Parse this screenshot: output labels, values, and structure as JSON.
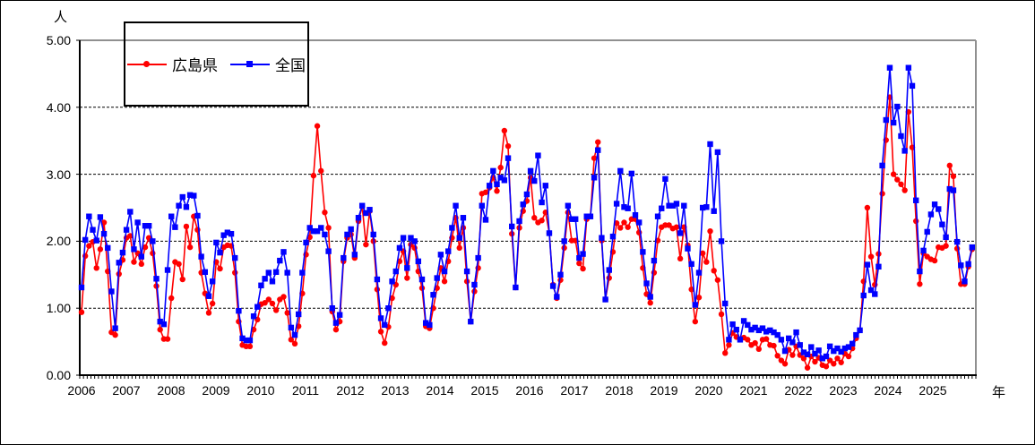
{
  "chart": {
    "y_unit_label": "人",
    "x_unit_label": "年",
    "y_tick_labels": [
      "0.00",
      "1.00",
      "2.00",
      "3.00",
      "4.00",
      "5.00"
    ],
    "x_tick_labels": [
      "2006",
      "2007",
      "2008",
      "2009",
      "2010",
      "2011",
      "2012",
      "2013",
      "2014",
      "2015",
      "2016",
      "2017",
      "2018",
      "2019",
      "2020",
      "2021",
      "2022",
      "2023",
      "2024",
      "2025"
    ]
  },
  "legend": {
    "items": [
      {
        "label": "広島県",
        "color": "#FF0000",
        "marker": "circle"
      },
      {
        "label": "全国",
        "color": "#0000FF",
        "marker": "square"
      }
    ]
  },
  "chart_data": {
    "type": "line",
    "title": "",
    "x_start": "2006-01",
    "x_frequency": "monthly",
    "x_years": [
      2006,
      2007,
      2008,
      2009,
      2010,
      2011,
      2012,
      2013,
      2014,
      2015,
      2016,
      2017,
      2018,
      2019,
      2020,
      2021,
      2022,
      2023,
      2024,
      2025
    ],
    "ylim": [
      0,
      5
    ],
    "y_tick_interval": 1,
    "ylabel": "人",
    "xlabel": "年",
    "grid": "horizontal-dashed",
    "legend_position": "top-left-inside",
    "series": [
      {
        "name": "広島県",
        "color": "#FF0000",
        "marker": "circle",
        "values": [
          0.94,
          1.78,
          1.93,
          1.99,
          1.6,
          1.88,
          2.28,
          1.55,
          0.64,
          0.6,
          1.51,
          1.72,
          2.05,
          2.08,
          1.69,
          1.82,
          1.66,
          1.91,
          2.05,
          1.82,
          1.33,
          0.68,
          0.54,
          0.54,
          1.15,
          1.69,
          1.66,
          1.43,
          2.22,
          1.91,
          2.37,
          2.17,
          1.53,
          1.22,
          0.93,
          1.07,
          1.69,
          1.59,
          1.91,
          1.94,
          1.93,
          1.53,
          0.8,
          0.45,
          0.43,
          0.43,
          0.68,
          0.83,
          1.06,
          1.08,
          1.13,
          1.07,
          0.97,
          1.13,
          1.17,
          0.93,
          0.53,
          0.47,
          0.73,
          1.22,
          1.8,
          2.06,
          2.98,
          3.72,
          3.05,
          2.43,
          2.2,
          0.95,
          0.68,
          0.8,
          1.7,
          2.05,
          2.1,
          1.75,
          2.3,
          2.52,
          1.95,
          2.45,
          2.0,
          1.28,
          0.65,
          0.48,
          0.72,
          1.15,
          1.35,
          1.7,
          1.85,
          1.45,
          1.95,
          1.9,
          1.55,
          1.3,
          0.73,
          0.7,
          1.0,
          1.3,
          1.6,
          1.4,
          1.7,
          2.05,
          2.35,
          1.9,
          2.2,
          1.4,
          0.8,
          1.25,
          1.6,
          2.71,
          2.73,
          2.8,
          2.95,
          2.75,
          3.1,
          3.65,
          3.42,
          2.11,
          1.31,
          2.2,
          2.45,
          2.6,
          2.95,
          2.35,
          2.28,
          2.31,
          2.43,
          2.12,
          1.35,
          1.15,
          1.42,
          1.9,
          2.43,
          2.01,
          2.01,
          1.67,
          1.59,
          2.33,
          2.37,
          3.24,
          3.48,
          2.01,
          1.13,
          1.45,
          1.84,
          2.27,
          2.2,
          2.28,
          2.21,
          2.33,
          2.33,
          2.13,
          1.6,
          1.21,
          1.08,
          1.53,
          2.01,
          2.21,
          2.24,
          2.24,
          2.19,
          2.21,
          1.74,
          2.21,
          1.94,
          1.28,
          0.8,
          1.16,
          1.82,
          1.69,
          2.15,
          1.56,
          1.42,
          0.91,
          0.33,
          0.45,
          0.63,
          0.57,
          0.53,
          0.56,
          0.53,
          0.45,
          0.48,
          0.39,
          0.53,
          0.54,
          0.45,
          0.44,
          0.29,
          0.22,
          0.17,
          0.38,
          0.3,
          0.43,
          0.3,
          0.25,
          0.11,
          0.28,
          0.2,
          0.26,
          0.15,
          0.13,
          0.22,
          0.17,
          0.25,
          0.19,
          0.32,
          0.28,
          0.4,
          0.55,
          0.67,
          1.4,
          2.5,
          1.77,
          1.35,
          1.81,
          2.71,
          3.51,
          4.15,
          3.0,
          2.92,
          2.85,
          2.76,
          3.93,
          3.4,
          2.3,
          1.36,
          1.82,
          1.77,
          1.73,
          1.71,
          1.91,
          1.9,
          1.93,
          3.13,
          2.97,
          1.89,
          1.36,
          1.36,
          1.62,
          1.88
        ]
      },
      {
        "name": "全国",
        "color": "#0000FF",
        "marker": "square",
        "values": [
          1.31,
          2.02,
          2.37,
          2.17,
          2.01,
          2.36,
          2.11,
          1.9,
          1.25,
          0.7,
          1.68,
          1.83,
          2.17,
          2.44,
          1.88,
          2.28,
          1.77,
          2.23,
          2.23,
          2.0,
          1.44,
          0.8,
          0.76,
          1.57,
          2.37,
          2.21,
          2.53,
          2.66,
          2.51,
          2.69,
          2.68,
          2.38,
          1.77,
          1.54,
          1.18,
          1.4,
          1.98,
          1.83,
          2.09,
          2.13,
          2.11,
          1.75,
          0.96,
          0.55,
          0.52,
          0.52,
          0.88,
          1.02,
          1.34,
          1.44,
          1.53,
          1.4,
          1.54,
          1.71,
          1.84,
          1.53,
          0.71,
          0.6,
          0.91,
          1.53,
          1.98,
          2.2,
          2.15,
          2.15,
          2.2,
          2.1,
          1.85,
          1.0,
          0.78,
          0.9,
          1.75,
          2.1,
          2.18,
          1.8,
          2.35,
          2.53,
          2.42,
          2.47,
          2.1,
          1.43,
          0.85,
          0.75,
          1.0,
          1.4,
          1.55,
          1.9,
          2.05,
          1.6,
          2.05,
          2.0,
          1.7,
          1.43,
          0.78,
          0.75,
          1.2,
          1.45,
          1.8,
          1.55,
          1.85,
          2.2,
          2.53,
          2.05,
          2.35,
          1.55,
          0.8,
          1.35,
          1.75,
          2.53,
          2.32,
          2.83,
          3.05,
          2.85,
          2.95,
          2.91,
          3.24,
          2.22,
          1.31,
          2.3,
          2.55,
          2.7,
          3.05,
          2.9,
          3.28,
          2.58,
          2.83,
          2.12,
          1.33,
          1.17,
          1.5,
          2.0,
          2.53,
          2.33,
          2.33,
          1.75,
          1.81,
          2.37,
          2.37,
          2.95,
          3.36,
          2.05,
          1.13,
          1.57,
          2.07,
          2.56,
          3.05,
          2.51,
          2.49,
          3.01,
          2.39,
          2.28,
          1.84,
          1.37,
          1.17,
          1.71,
          2.37,
          2.49,
          2.93,
          2.53,
          2.53,
          2.56,
          2.12,
          2.53,
          1.89,
          1.66,
          1.05,
          1.53,
          2.5,
          2.51,
          3.45,
          2.45,
          3.33,
          2.0,
          1.07,
          0.53,
          0.76,
          0.68,
          0.53,
          0.81,
          0.75,
          0.68,
          0.71,
          0.67,
          0.7,
          0.65,
          0.67,
          0.64,
          0.6,
          0.53,
          0.36,
          0.55,
          0.49,
          0.64,
          0.45,
          0.34,
          0.31,
          0.42,
          0.32,
          0.37,
          0.25,
          0.28,
          0.43,
          0.36,
          0.4,
          0.35,
          0.4,
          0.42,
          0.47,
          0.6,
          0.67,
          1.19,
          1.65,
          1.27,
          1.21,
          1.62,
          3.13,
          3.81,
          4.59,
          3.77,
          4.01,
          3.57,
          3.35,
          4.59,
          4.32,
          2.61,
          1.55,
          1.86,
          2.14,
          2.4,
          2.55,
          2.48,
          2.25,
          2.06,
          2.78,
          2.76,
          1.99,
          1.64,
          1.4,
          1.66,
          1.91
        ]
      }
    ]
  }
}
